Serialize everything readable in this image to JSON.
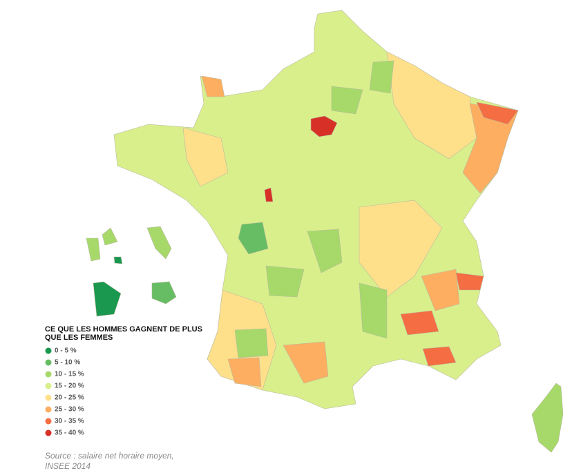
{
  "legend": {
    "title": [
      "CE QUE LES HOMMES GAGNENT DE PLUS",
      "QUE LES FEMMES"
    ],
    "items": [
      {
        "label": "0 - 5 %",
        "color": "#1a9850"
      },
      {
        "label": "5 - 10 %",
        "color": "#66bd63"
      },
      {
        "label": "10 - 15 %",
        "color": "#a6d96a"
      },
      {
        "label": "15 - 20 %",
        "color": "#d9ef8b"
      },
      {
        "label": "20 - 25 %",
        "color": "#fee08b"
      },
      {
        "label": "25 - 30 %",
        "color": "#fdae61"
      },
      {
        "label": "30 - 35 %",
        "color": "#f46d43"
      },
      {
        "label": "35 - 40 %",
        "color": "#d73027"
      }
    ]
  },
  "source": [
    "Source : salaire net horaire moyen,",
    "INSEE 2014"
  ]
}
